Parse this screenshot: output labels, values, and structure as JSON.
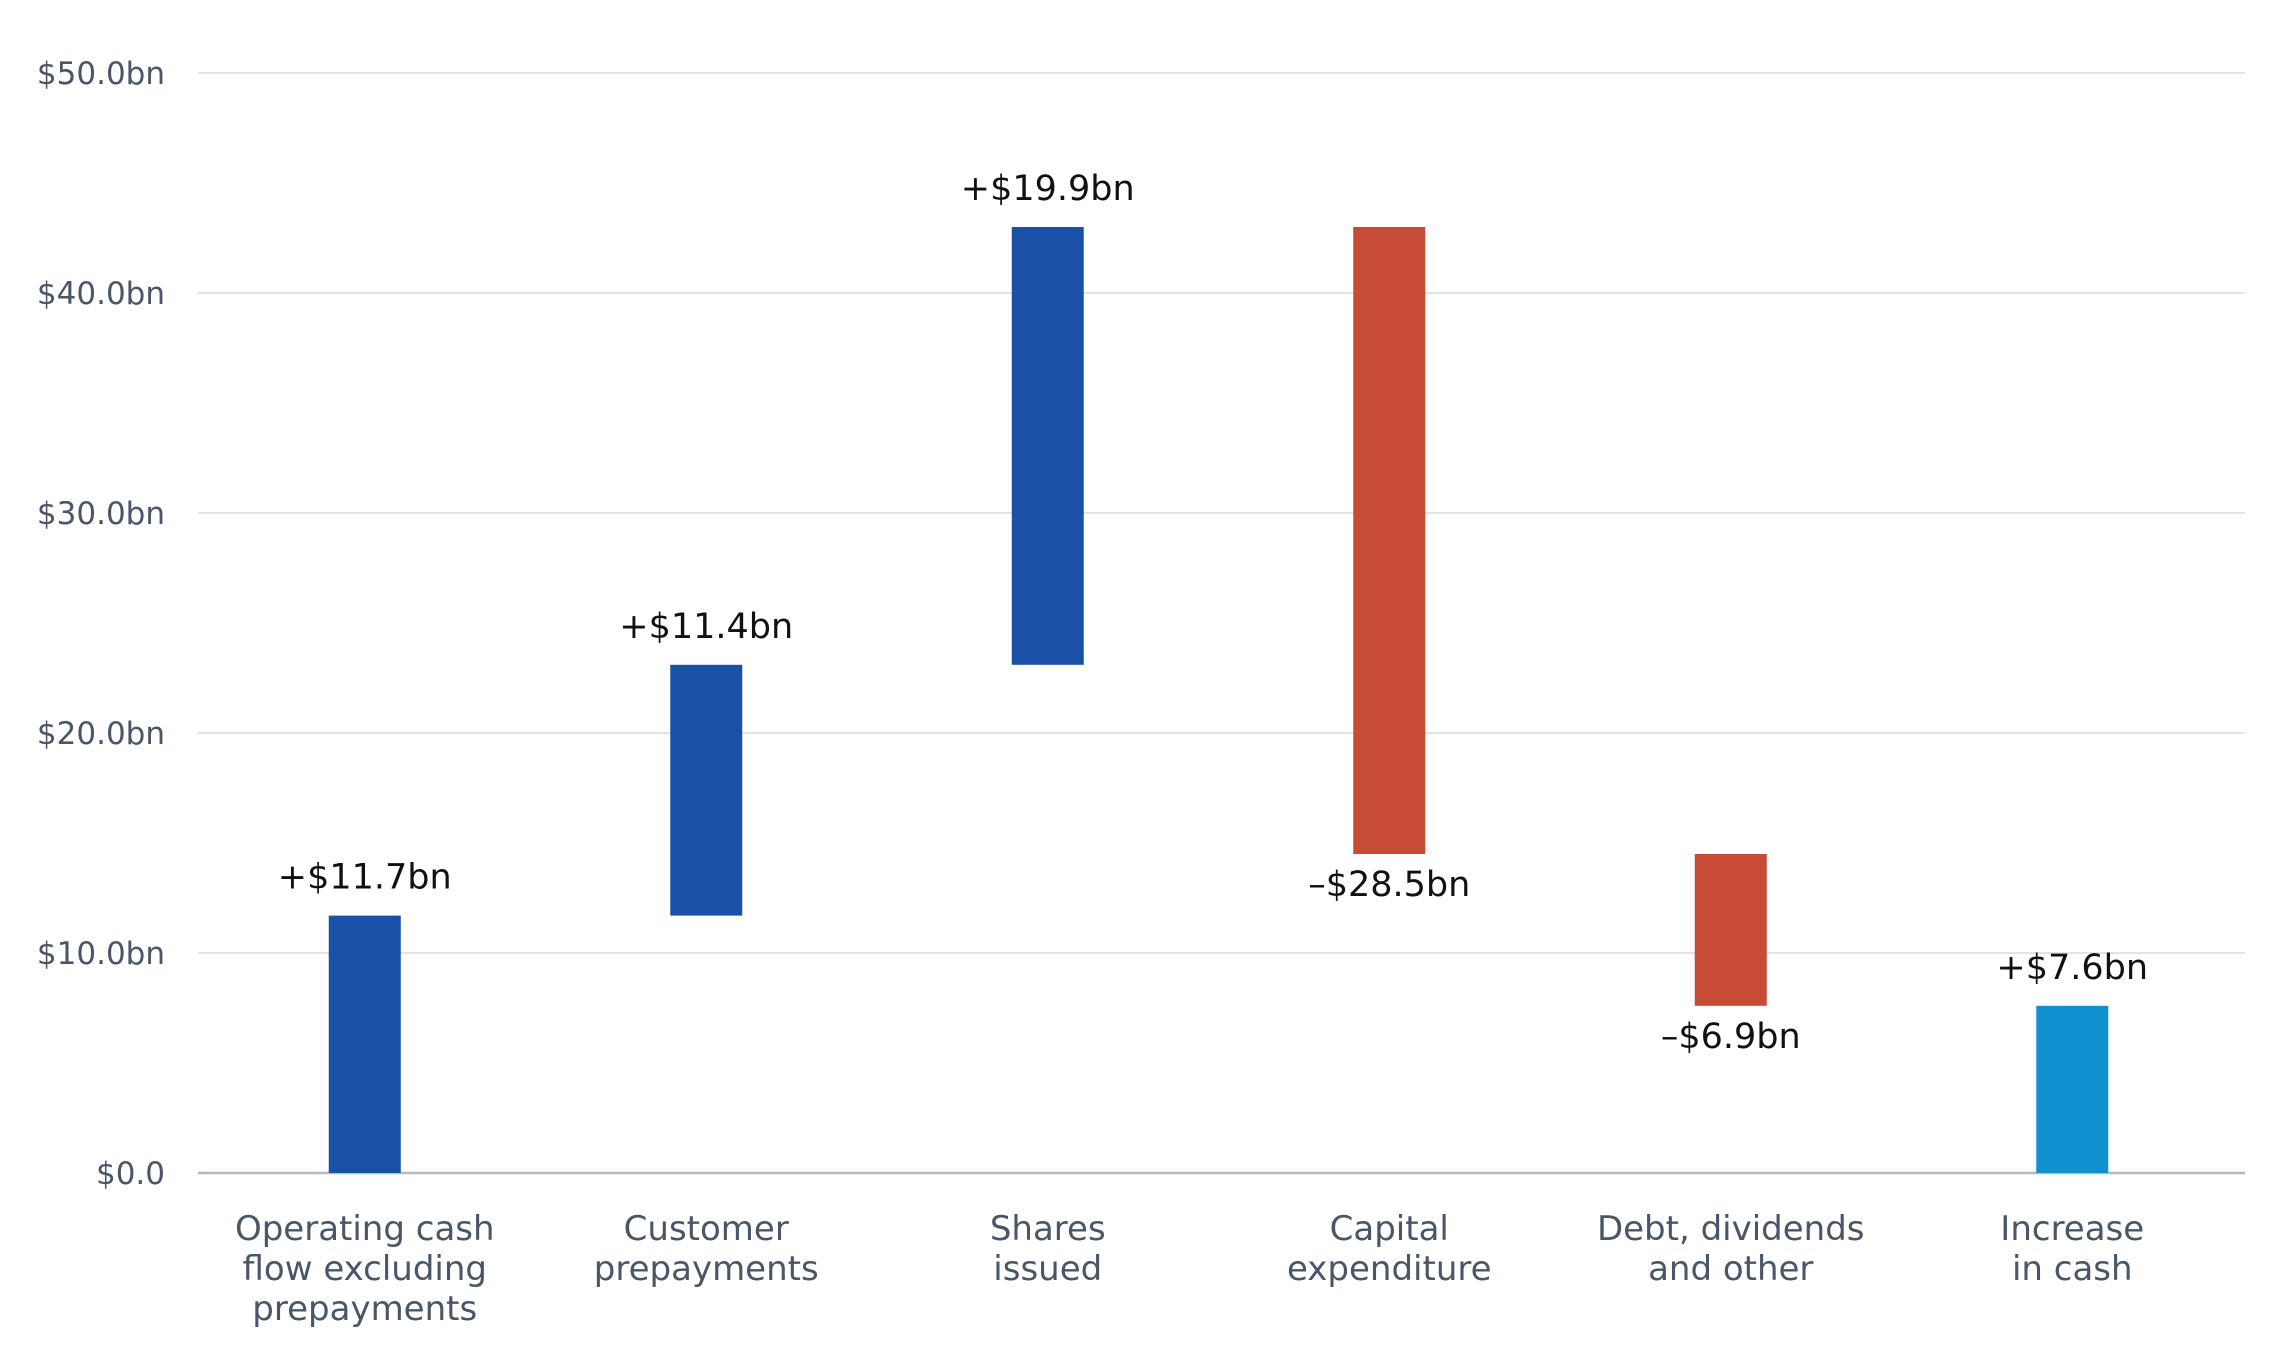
{
  "chart_data": {
    "type": "bar",
    "subtype": "waterfall",
    "title": "",
    "xlabel": "",
    "ylabel": "",
    "ylim": [
      0,
      50
    ],
    "y_ticks": [
      "$0.0",
      "$10.0bn",
      "$20.0bn",
      "$30.0bn",
      "$40.0bn",
      "$50.0bn"
    ],
    "y_tick_values": [
      0,
      10,
      20,
      30,
      40,
      50
    ],
    "grid": true,
    "legend": "none",
    "categories": [
      "Operating cash flow excluding prepayments",
      "Customer prepayments",
      "Shares issued",
      "Capital expenditure",
      "Debt, dividends and other",
      "Increase in cash"
    ],
    "category_lines": [
      [
        "Operating cash",
        "flow excluding",
        "prepayments"
      ],
      [
        "Customer",
        "prepayments"
      ],
      [
        "Shares",
        "issued"
      ],
      [
        "Capital",
        "expenditure"
      ],
      [
        "Debt, dividends",
        "and other"
      ],
      [
        "Increase",
        "in cash"
      ]
    ],
    "values": [
      11.7,
      11.4,
      19.9,
      -28.5,
      -6.9,
      7.6
    ],
    "bar_start": [
      0,
      11.7,
      23.1,
      43.0,
      14.5,
      0
    ],
    "bar_end": [
      11.7,
      23.1,
      43.0,
      14.5,
      7.6,
      7.6
    ],
    "data_labels": [
      "+$11.7bn",
      "+$11.4bn",
      "+$19.9bn",
      "–$28.5bn",
      "–$6.9bn",
      "+$7.6bn"
    ],
    "bar_kind": [
      "increase",
      "increase",
      "increase",
      "decrease",
      "decrease",
      "total"
    ]
  },
  "colors": {
    "increase": "#1a51a6",
    "decrease": "#c84b36",
    "total": "#1190cf",
    "grid": "#e3e3e3",
    "axis_text": "#4a5568",
    "label_text": "#111111"
  }
}
